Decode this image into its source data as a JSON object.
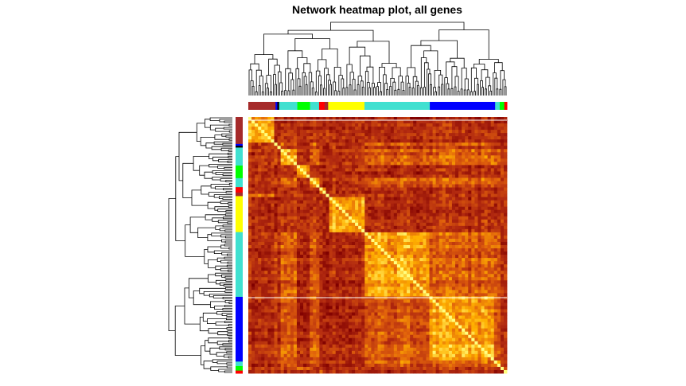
{
  "chart_data": {
    "type": "heatmap",
    "title": "Network heatmap plot, all genes",
    "xlabel": "",
    "ylabel": "",
    "colormap": [
      "#800000",
      "#b22a10",
      "#e0600c",
      "#ffb000",
      "#ffff80"
    ],
    "modules": [
      {
        "color": "#a52a2a",
        "label": "brown",
        "size": 30
      },
      {
        "color": "#0000ff",
        "label": "blue",
        "size": 2
      },
      {
        "color": "#000000",
        "label": "black",
        "size": 2
      },
      {
        "color": "#40e0d0",
        "label": "turquoise",
        "size": 20
      },
      {
        "color": "#00ff00",
        "label": "green",
        "size": 14
      },
      {
        "color": "#40e0d0",
        "label": "turquoise",
        "size": 10
      },
      {
        "color": "#ff0000",
        "label": "red",
        "size": 6
      },
      {
        "color": "#a52a2a",
        "label": "brown",
        "size": 4
      },
      {
        "color": "#ffff00",
        "label": "yellow",
        "size": 40
      },
      {
        "color": "#40e0d0",
        "label": "turquoise",
        "size": 72
      },
      {
        "color": "#0000ff",
        "label": "blue",
        "size": 72
      },
      {
        "color": "#40e0d0",
        "label": "turquoise",
        "size": 5
      },
      {
        "color": "#00ff00",
        "label": "green",
        "size": 5
      },
      {
        "color": "#ff0000",
        "label": "red",
        "size": 3
      }
    ]
  }
}
